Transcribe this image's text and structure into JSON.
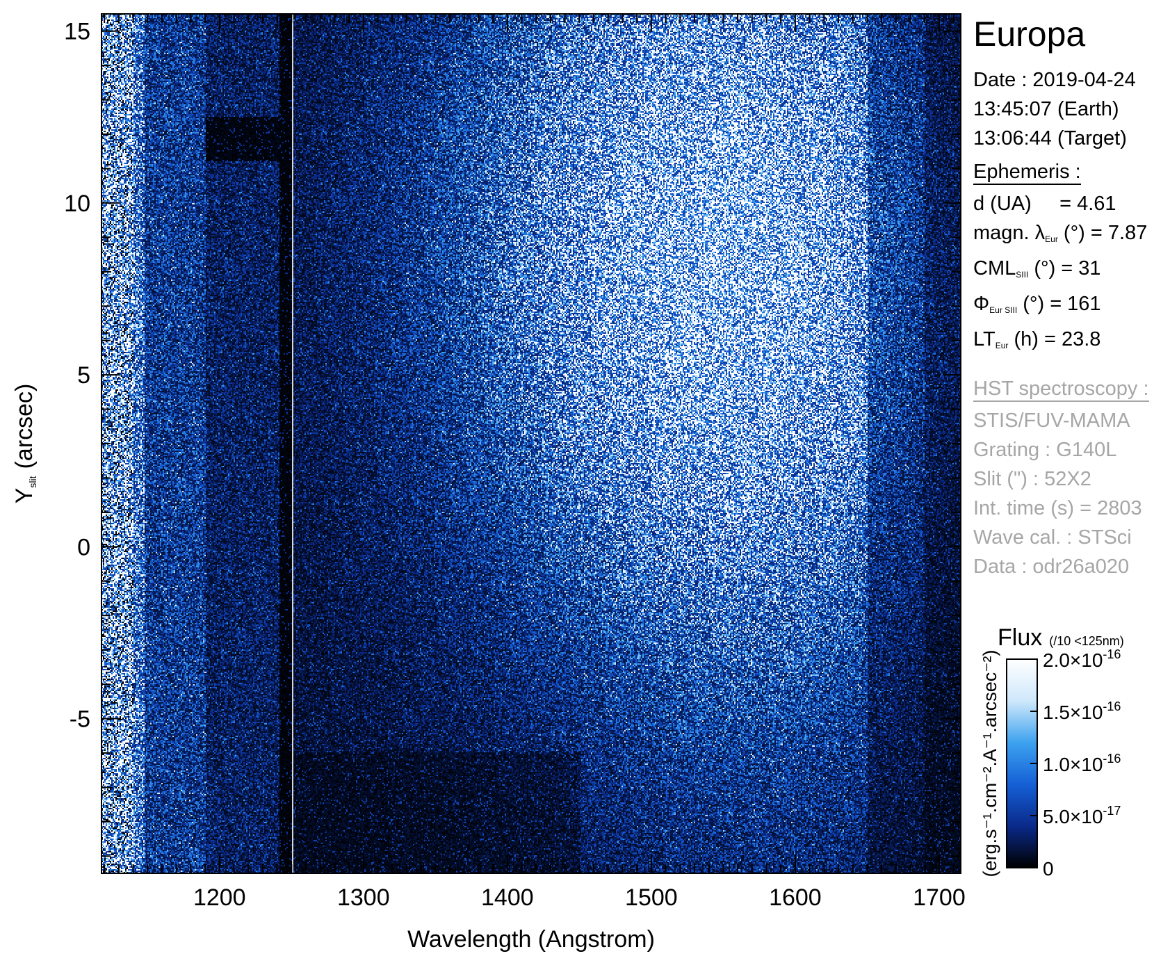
{
  "chart_data": {
    "type": "heatmap",
    "xlabel": "Wavelength (Angstrom)",
    "ylabel_main": "Y",
    "ylabel_sub": "slit",
    "ylabel_unit": "(arcsec)",
    "xlim": [
      1118,
      1715
    ],
    "ylim": [
      -9.5,
      15.5
    ],
    "x_ticks": [
      1200,
      1300,
      1400,
      1500,
      1600,
      1700
    ],
    "x_tick_labels": [
      "1200",
      "1300",
      "1400",
      "1500",
      "1600",
      "1700"
    ],
    "y_ticks": [
      -5,
      0,
      5,
      10,
      15
    ],
    "y_tick_labels": [
      "-5",
      "0",
      "5",
      "10",
      "15"
    ],
    "divider_wavelength": 1250,
    "colorbar": {
      "title": "Flux",
      "note": "(/10 <125nm)",
      "unit_label": "(erg.s⁻¹.cm⁻².A⁻¹.arcsec⁻²)",
      "range": [
        0,
        2e-16
      ],
      "ticks": [
        0,
        5e-17,
        1e-16,
        1.5e-16,
        2e-16
      ],
      "tick_mantissas": [
        "0",
        "5.0×10",
        "1.0×10",
        "1.5×10",
        "2.0×10"
      ],
      "tick_exponents": [
        "",
        "-17",
        "-16",
        "-16",
        "-16"
      ],
      "colors": [
        "#000000",
        "#0a2a8a",
        "#1560d6",
        "#3da2ef",
        "#cfe8fb",
        "#ffffff"
      ]
    }
  },
  "info": {
    "target": "Europa",
    "date_line": "Date : 2019-04-24",
    "earth_time": "13:45:07 (Earth)",
    "target_time": "13:06:44 (Target)",
    "ephemeris_header": "Ephemeris :",
    "d_label": "d (UA)",
    "d_value": "= 4.61",
    "magn_label": "magn. λ",
    "magn_sub": "Eur",
    "magn_value": "(°)  = 7.87",
    "cml_label": "CML",
    "cml_sub": "SIII",
    "cml_value": "(°) = 31",
    "phi_label": "Φ",
    "phi_sub": "Eur SIII",
    "phi_value": "(°) = 161",
    "lt_label": "LT",
    "lt_sub": "Eur",
    "lt_value": "(h) = 23.8",
    "hst_header": "HST spectroscopy :",
    "instrument": "STIS/FUV-MAMA",
    "grating": "Grating : G140L",
    "slit": "Slit (\") : 52X2",
    "int_time": "Int. time (s) = 2803",
    "wave_cal": "Wave cal. : STSci",
    "data_id": "Data : odr26a020"
  }
}
